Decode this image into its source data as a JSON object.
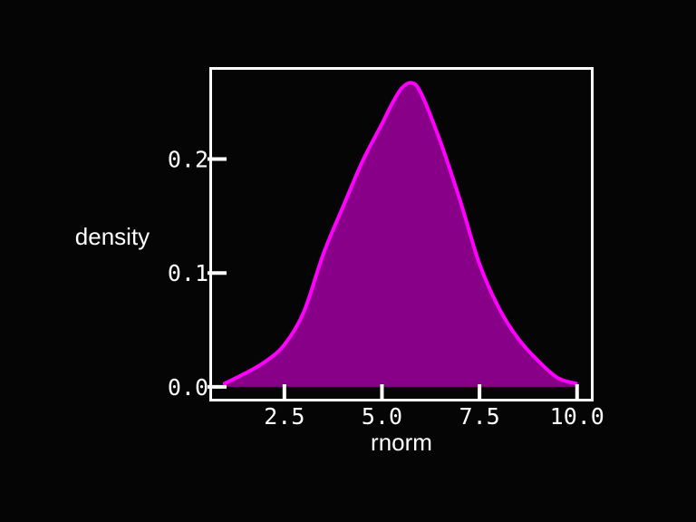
{
  "colors": {
    "background": "#050505",
    "panel_border": "#ffffff",
    "fill": "#870087",
    "line": "#ff00ff",
    "text": "#ffffff"
  },
  "chart_data": {
    "type": "area",
    "title": "",
    "xlabel": "rnorm",
    "ylabel": "density",
    "xlim": [
      0.6,
      10.4
    ],
    "ylim": [
      -0.012,
      0.28
    ],
    "x_ticks": [
      {
        "value": 2.5,
        "label": "2.5"
      },
      {
        "value": 5.0,
        "label": "5.0"
      },
      {
        "value": 7.5,
        "label": "7.5"
      },
      {
        "value": 10.0,
        "label": "10.0"
      }
    ],
    "y_ticks": [
      {
        "value": 0.0,
        "label": "0.0"
      },
      {
        "value": 0.1,
        "label": "0.1"
      },
      {
        "value": 0.2,
        "label": "0.2"
      }
    ],
    "grid": false,
    "legend": "none",
    "series": [
      {
        "x": [
          0.97,
          1.5,
          2.0,
          2.5,
          3.0,
          3.5,
          4.0,
          4.5,
          5.0,
          5.25,
          5.5,
          5.75,
          6.0,
          6.5,
          7.0,
          7.5,
          8.0,
          8.5,
          9.0,
          9.5,
          9.97
        ],
        "values": [
          0.003,
          0.012,
          0.022,
          0.037,
          0.066,
          0.117,
          0.158,
          0.198,
          0.231,
          0.248,
          0.262,
          0.267,
          0.258,
          0.215,
          0.164,
          0.108,
          0.069,
          0.042,
          0.023,
          0.008,
          0.003
        ]
      }
    ]
  }
}
